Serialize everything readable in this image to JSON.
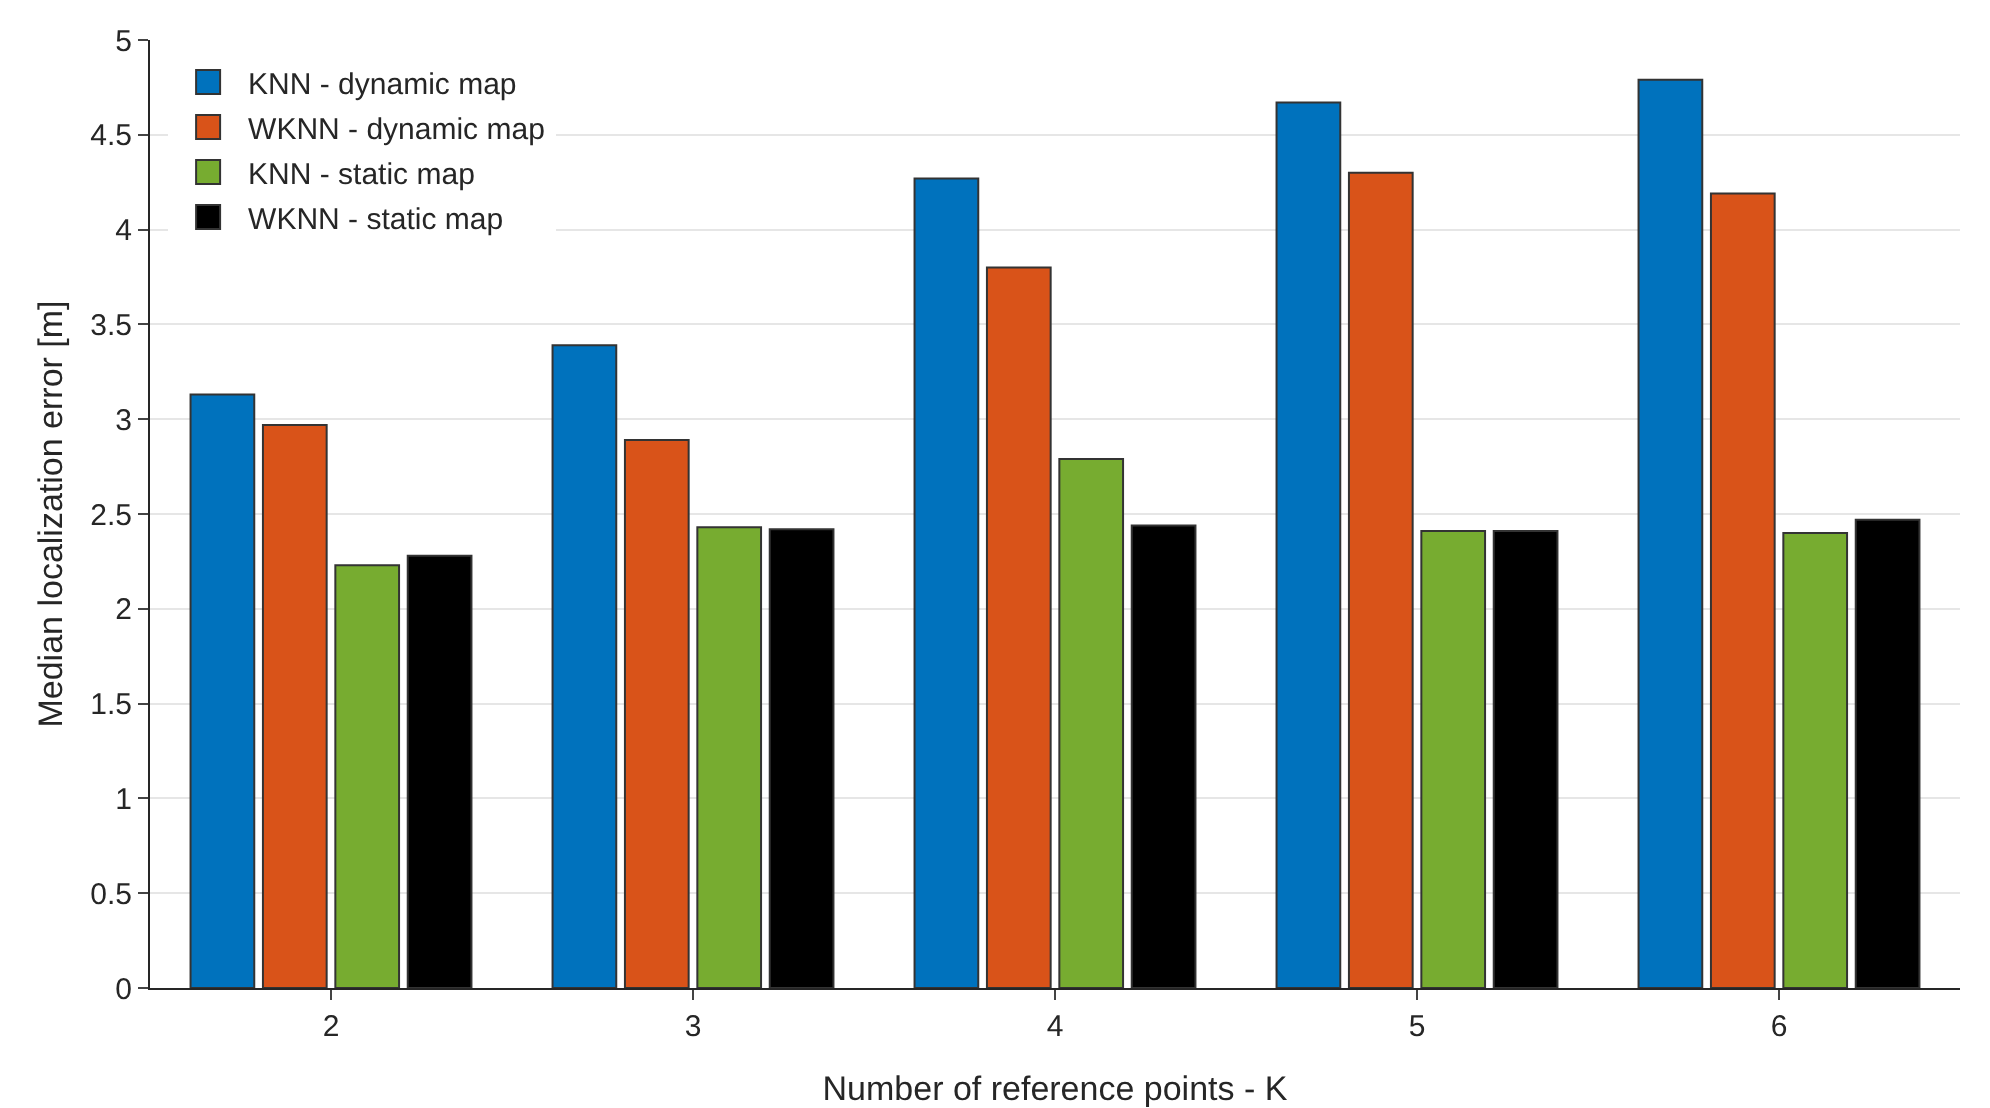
{
  "chart_data": {
    "type": "bar",
    "xlabel": "Number of reference points - K",
    "ylabel": "Median localization error [m]",
    "categories": [
      "2",
      "3",
      "4",
      "5",
      "6"
    ],
    "series": [
      {
        "name": "KNN - dynamic map",
        "color": "#0072bd",
        "values": [
          3.13,
          3.39,
          4.27,
          4.67,
          4.79
        ]
      },
      {
        "name": "WKNN - dynamic map",
        "color": "#d95319",
        "values": [
          2.97,
          2.89,
          3.8,
          4.3,
          4.19
        ]
      },
      {
        "name": "KNN - static map",
        "color": "#77ac30",
        "values": [
          2.23,
          2.43,
          2.79,
          2.41,
          2.4
        ]
      },
      {
        "name": "WKNN - static map",
        "color": "#000000",
        "values": [
          2.28,
          2.42,
          2.44,
          2.41,
          2.47
        ]
      }
    ],
    "ylim": [
      0,
      5
    ],
    "yticks": [
      0,
      0.5,
      1,
      1.5,
      2,
      2.5,
      3,
      3.5,
      4,
      4.5,
      5
    ],
    "grid": "y",
    "legend": "top left"
  }
}
